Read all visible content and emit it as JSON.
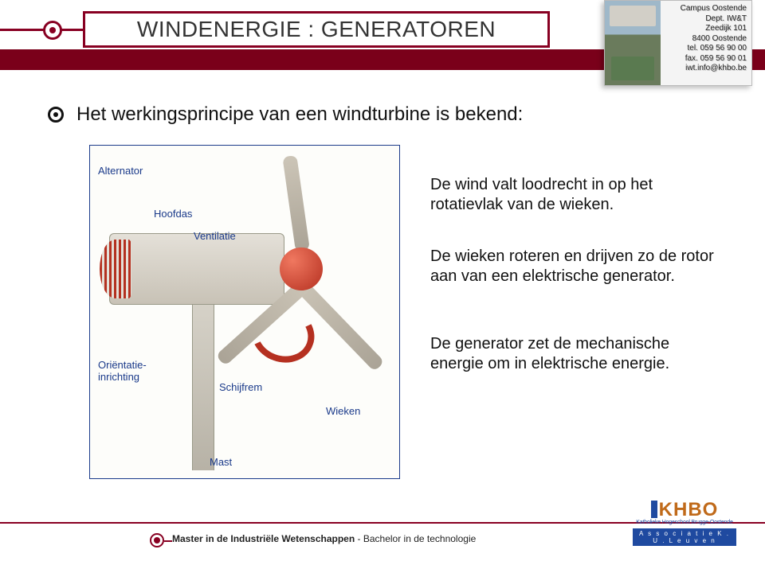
{
  "header": {
    "title": "WINDENERGIE : GENERATOREN",
    "accent_color": "#880022",
    "bar_color": "#7a001a"
  },
  "campus": {
    "line1": "Campus Oostende",
    "line2": "Dept. IW&T",
    "line3": "Zeedijk 101",
    "line4": "8400 Oostende",
    "line5": "tel. 059 56 90 00",
    "line6": "fax. 059 56 90 01",
    "line7": "iwt.info@khbo.be"
  },
  "bullet": {
    "text": "Het werkingsprincipe van een windturbine is bekend:"
  },
  "diagram": {
    "labels": {
      "alternator": "Alternator",
      "hoofdas": "Hoofdas",
      "ventilatie": "Ventilatie",
      "orientatie": "Oriëntatie-inrichting",
      "schijfrem": "Schijfrem",
      "wieken": "Wieken",
      "mast": "Mast"
    },
    "border_color": "#1a3a8a",
    "accent_red": "#b53020"
  },
  "paragraphs": {
    "p1": "De wind valt loodrecht in op het rotatievlak van de wieken.",
    "p2": "De wieken roteren en drijven zo de rotor aan van een elektrische generator.",
    "p3": "De generator zet de mechanische energie om in elektrische energie."
  },
  "footer": {
    "text_bold": "Master in de Industriële Wetenschappen",
    "text_sep": "   -   ",
    "text_rest": "Bachelor in de technologie"
  },
  "logo": {
    "main": "KHBO",
    "sub": "Katholieke Hogeschool Brugge-Oostende",
    "assoc": "A s s o c i a t i e   K . U . L e u v e n"
  },
  "colors": {
    "text": "#111111",
    "background": "#ffffff"
  }
}
